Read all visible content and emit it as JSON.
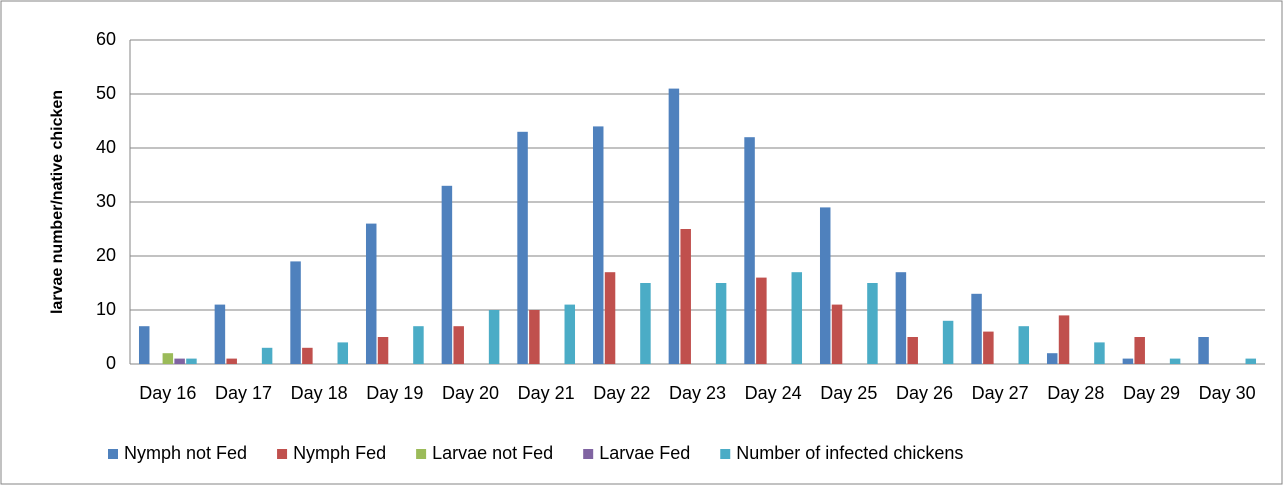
{
  "chart_data": {
    "type": "bar",
    "ylabel": "larvae number/native chicken",
    "categories": [
      "Day 16",
      "Day 17",
      "Day 18",
      "Day 19",
      "Day 20",
      "Day 21",
      "Day 22",
      "Day 23",
      "Day 24",
      "Day 25",
      "Day 26",
      "Day 27",
      "Day 28",
      "Day 29",
      "Day 30"
    ],
    "series": [
      {
        "name": "Nymph not Fed",
        "color": "#4f81bd",
        "values": [
          7,
          11,
          19,
          26,
          33,
          43,
          44,
          51,
          42,
          29,
          17,
          13,
          2,
          1,
          5
        ]
      },
      {
        "name": "Nymph Fed",
        "color": "#c0504d",
        "values": [
          0,
          1,
          3,
          5,
          7,
          10,
          17,
          25,
          16,
          11,
          5,
          6,
          9,
          5,
          0
        ]
      },
      {
        "name": "Larvae not Fed",
        "color": "#9bbb59",
        "values": [
          2,
          0,
          0,
          0,
          0,
          0,
          0,
          0,
          0,
          0,
          0,
          0,
          0,
          0,
          0
        ]
      },
      {
        "name": "Larvae Fed",
        "color": "#8064a2",
        "values": [
          1,
          0,
          0,
          0,
          0,
          0,
          0,
          0,
          0,
          0,
          0,
          0,
          0,
          0,
          0
        ]
      },
      {
        "name": "Number of infected chickens",
        "color": "#4bacc6",
        "values": [
          1,
          3,
          4,
          7,
          10,
          11,
          15,
          15,
          17,
          15,
          8,
          7,
          4,
          1,
          1
        ]
      }
    ],
    "ylim": [
      0,
      60
    ],
    "yticks": [
      0,
      10,
      20,
      30,
      40,
      50,
      60
    ],
    "grid": true,
    "legend": "bottom"
  }
}
